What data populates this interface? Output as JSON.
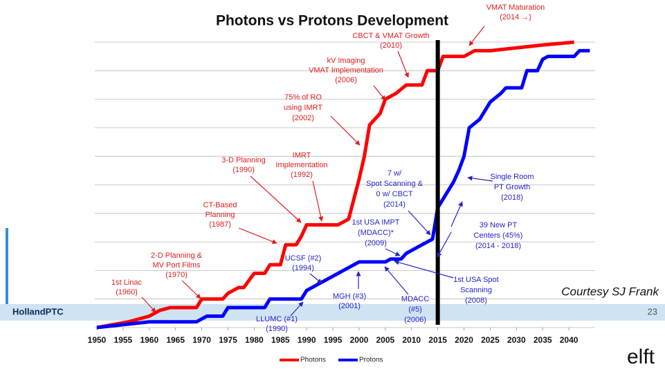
{
  "chart_data": {
    "type": "line",
    "title": "Photons vs Protons Development",
    "xlim": [
      1950,
      2045
    ],
    "xticks": [
      1950,
      1955,
      1960,
      1965,
      1970,
      1975,
      1980,
      1985,
      1990,
      1995,
      2000,
      2005,
      2010,
      2015,
      2020,
      2025,
      2030,
      2035,
      2040
    ],
    "ylim": [
      0,
      10
    ],
    "yticks": [
      0,
      1,
      2,
      3,
      4,
      5,
      6,
      7,
      8,
      9,
      10
    ],
    "grid": true,
    "legend": "bottom",
    "vline": 2015,
    "series": [
      {
        "name": "Photons",
        "color": "#ff0000",
        "x": [
          1950,
          1953,
          1956,
          1960,
          1962,
          1964,
          1969,
          1970,
          1974,
          1975,
          1977,
          1978,
          1980,
          1982,
          1983,
          1985,
          1986,
          1988,
          1989,
          1990,
          1996,
          1997,
          1998,
          2000,
          2001,
          2002,
          2004,
          2005,
          2007,
          2009,
          2012,
          2013,
          2015,
          2016,
          2020,
          2022,
          2025,
          2030,
          2035,
          2041
        ],
        "values": [
          0,
          0.1,
          0.2,
          0.4,
          0.6,
          0.7,
          0.7,
          1.0,
          1.0,
          1.2,
          1.4,
          1.4,
          1.9,
          1.9,
          2.2,
          2.2,
          2.9,
          2.9,
          3.2,
          3.6,
          3.6,
          3.7,
          3.8,
          5.2,
          6.0,
          7.1,
          7.5,
          8.0,
          8.2,
          8.5,
          8.5,
          9.0,
          9.0,
          9.5,
          9.5,
          9.7,
          9.7,
          9.8,
          9.9,
          10.0
        ]
      },
      {
        "name": "Protons",
        "color": "#0000ff",
        "x": [
          1950,
          1955,
          1960,
          1969,
          1971,
          1974,
          1975,
          1982,
          1983,
          1989,
          1990,
          1992,
          1995,
          1998,
          2000,
          2005,
          2006,
          2008,
          2009,
          2011,
          2013,
          2014,
          2015,
          2016,
          2018,
          2019,
          2020,
          2021,
          2023,
          2025,
          2027,
          2028,
          2031,
          2032,
          2034,
          2035,
          2036,
          2041,
          2042,
          2044
        ],
        "values": [
          0,
          0.1,
          0.2,
          0.2,
          0.4,
          0.4,
          0.7,
          0.7,
          1.0,
          1.0,
          1.3,
          1.5,
          1.8,
          2.1,
          2.3,
          2.3,
          2.4,
          2.4,
          2.6,
          2.8,
          3.0,
          3.1,
          4.2,
          4.5,
          5.1,
          5.5,
          6.0,
          7.0,
          7.3,
          7.9,
          8.2,
          8.4,
          8.4,
          9.0,
          9.0,
          9.4,
          9.5,
          9.5,
          9.7,
          9.7
        ]
      }
    ],
    "annotations": [
      {
        "lines": [
          "VMAT Maturation",
          "(2014 →)"
        ],
        "color": "#e01b1b"
      },
      {
        "lines": [
          "CBCT & VMAT Growth",
          "(2010)"
        ],
        "color": "#e01b1b"
      },
      {
        "lines": [
          "kV Imaging",
          "VMAT Implementation",
          "(2006)"
        ],
        "color": "#e01b1b"
      },
      {
        "lines": [
          "75% of RO",
          "using IMRT",
          "(2002)"
        ],
        "color": "#e01b1b"
      },
      {
        "lines": [
          "3-D Planning",
          "(1990)"
        ],
        "color": "#e01b1b"
      },
      {
        "lines": [
          "IMRT",
          "Implementation",
          "(1992)"
        ],
        "color": "#e01b1b"
      },
      {
        "lines": [
          "CT-Based",
          "Planning",
          "(1987)"
        ],
        "color": "#e01b1b"
      },
      {
        "lines": [
          "2-D Planning &",
          "MV Port Films",
          "(1970)"
        ],
        "color": "#e01b1b"
      },
      {
        "lines": [
          "1st Linac",
          "(1960)"
        ],
        "color": "#e01b1b"
      },
      {
        "lines": [
          "7 w/",
          "Spot Scanning &",
          "0 w/ CBCT",
          "(2014)"
        ],
        "color": "#2424c8"
      },
      {
        "lines": [
          "Single Room",
          "PT Growth",
          "(2018)"
        ],
        "color": "#2424c8"
      },
      {
        "lines": [
          "39 New PT",
          "Centers (45%)",
          "(2014 - 2018)"
        ],
        "color": "#2424c8"
      },
      {
        "lines": [
          "1st USA IMPT",
          "(MDACC)*",
          "(2009)"
        ],
        "color": "#2424c8"
      },
      {
        "lines": [
          "UCSF (#2)",
          "(1994)"
        ],
        "color": "#2424c8"
      },
      {
        "lines": [
          "1st USA Spot",
          "Scanning",
          "(2008)"
        ],
        "color": "#2424c8"
      },
      {
        "lines": [
          "MGH (#3)",
          "(2001)"
        ],
        "color": "#2424c8"
      },
      {
        "lines": [
          "MDACC",
          "(#5)",
          "(2006)"
        ],
        "color": "#2424c8"
      },
      {
        "lines": [
          "LLUMC (#1)",
          "(1990)"
        ],
        "color": "#2424c8"
      }
    ]
  },
  "slide": {
    "footer": "HollandPTC",
    "page": "23",
    "credit": "Courtesy SJ Frank",
    "logo": "elft"
  }
}
